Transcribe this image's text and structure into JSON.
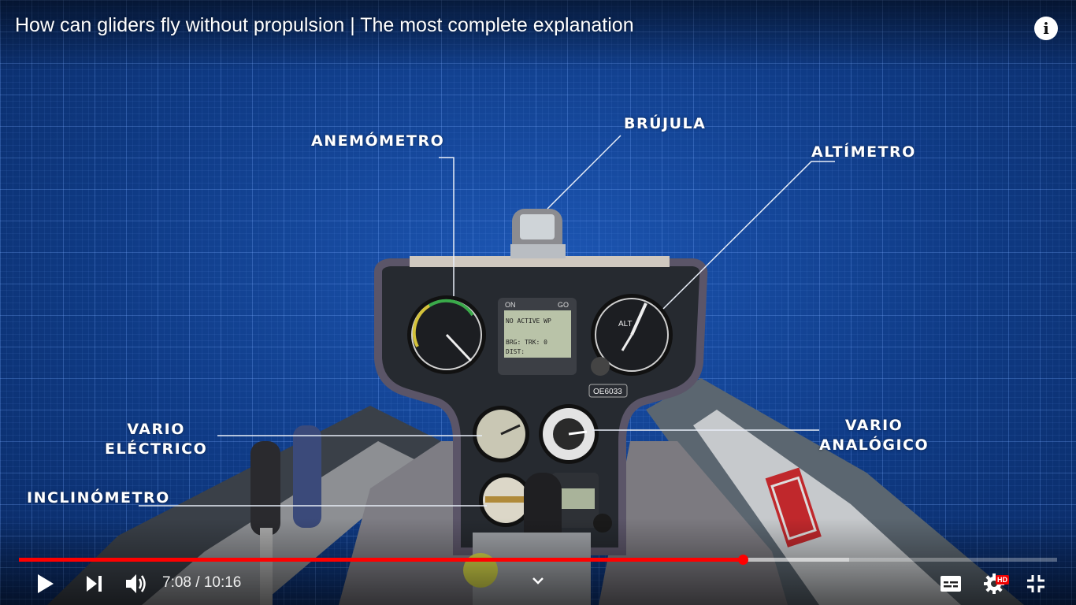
{
  "video": {
    "title": "How can gliders fly without propulsion | The most complete explanation"
  },
  "labels": {
    "anemometro": "ANEMÓMETRO",
    "brujula": "BRÚJULA",
    "altimetro": "ALTÍMETRO",
    "vario_electrico_line1": "VARIO",
    "vario_electrico_line2": "ELÉCTRICO",
    "vario_analogico_line1": "VARIO",
    "vario_analogico_line2": "ANALÓGICO",
    "inclinometro": "INCLINÓMETRO"
  },
  "scene_text": {
    "gps_on": "ON",
    "gps_go": "GO",
    "gps_line1": "NO ACTIVE WP",
    "gps_line2": "BRG:     TRK: 0",
    "gps_line3": "DIST:",
    "registration": "OE6033",
    "altimeter_label": "ALT"
  },
  "player": {
    "current_time": "7:08",
    "separator": " / ",
    "duration": "10:16",
    "progress_fraction": 0.697,
    "buffered_fraction": 0.8,
    "hd_badge": "HD"
  },
  "icons": {
    "info": "info-icon",
    "play": "play-icon",
    "next": "next-icon",
    "volume": "volume-icon",
    "chevron": "chevron-down-icon",
    "subtitles": "subtitles-icon",
    "settings": "gear-icon",
    "exit_fullscreen": "exit-fullscreen-icon"
  },
  "colors": {
    "background": "#0f3b86",
    "progress": "#ff0000"
  }
}
